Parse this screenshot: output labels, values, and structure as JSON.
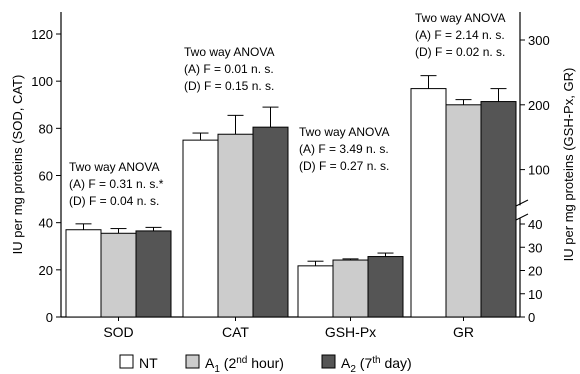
{
  "chart_data": {
    "type": "bar",
    "groups": [
      {
        "category": "SOD",
        "axis": "left",
        "values": {
          "NT": 37,
          "A1": 35.5,
          "A2": 36.5
        },
        "errors": {
          "NT": 2.5,
          "A1": 2,
          "A2": 1.5
        },
        "annotation": [
          "Two way ANOVA",
          "(A) F = 0.31 n. s.*",
          "(D) F = 0.04 n. s."
        ]
      },
      {
        "category": "CAT",
        "axis": "left",
        "values": {
          "NT": 75,
          "A1": 77.5,
          "A2": 80.5
        },
        "errors": {
          "NT": 3,
          "A1": 8,
          "A2": 8.5
        },
        "annotation": [
          "Two way ANOVA",
          "(A) F = 0.01 n. s.",
          "(D) F = 0.15 n. s."
        ]
      },
      {
        "category": "GSH-Px",
        "axis": "right",
        "values": {
          "NT": 22,
          "A1": 24.5,
          "A2": 26
        },
        "errors": {
          "NT": 2,
          "A1": 0.5,
          "A2": 1.5
        },
        "annotation": [
          "Two way ANOVA",
          "(A) F = 3.49 n. s.",
          "(D) F = 0.27 n. s."
        ]
      },
      {
        "category": "GR",
        "axis": "right",
        "values": {
          "NT": 225,
          "A1": 200,
          "A2": 205
        },
        "errors": {
          "NT": 20,
          "A1": 8,
          "A2": 20
        },
        "annotation": [
          "Two way ANOVA",
          "(A) F = 2.14 n. s.",
          "(D) F = 0.02 n. s."
        ]
      }
    ],
    "series": [
      {
        "key": "NT",
        "color": "#ffffff"
      },
      {
        "key": "A1",
        "color": "#cccccc"
      },
      {
        "key": "A2",
        "color": "#555555"
      }
    ],
    "legend": [
      {
        "key": "NT",
        "base": "NT",
        "sub": "",
        "paren_pre": "",
        "sup": "",
        "paren_post": ""
      },
      {
        "key": "A1",
        "base": "A",
        "sub": "1",
        "paren_pre": " (2",
        "sup": "nd",
        "paren_post": " hour)"
      },
      {
        "key": "A2",
        "base": "A",
        "sub": "2",
        "paren_pre": " (7",
        "sup": "th",
        "paren_post": " day)"
      }
    ],
    "y_left": {
      "label": "IU per mg proteins (SOD, CAT)",
      "range": [
        0,
        120
      ],
      "ticks": [
        0,
        20,
        40,
        60,
        80,
        100,
        120
      ]
    },
    "y_right": {
      "label": "IU per mg proteins (GSH-Px, GR)",
      "lower_range": [
        0,
        40
      ],
      "lower_ticks": [
        0,
        10,
        20,
        30,
        40
      ],
      "upper_range": [
        50,
        350
      ],
      "upper_ticks": [
        100,
        200,
        300
      ],
      "broken": true
    },
    "legend_position": "bottom",
    "grid": false
  }
}
